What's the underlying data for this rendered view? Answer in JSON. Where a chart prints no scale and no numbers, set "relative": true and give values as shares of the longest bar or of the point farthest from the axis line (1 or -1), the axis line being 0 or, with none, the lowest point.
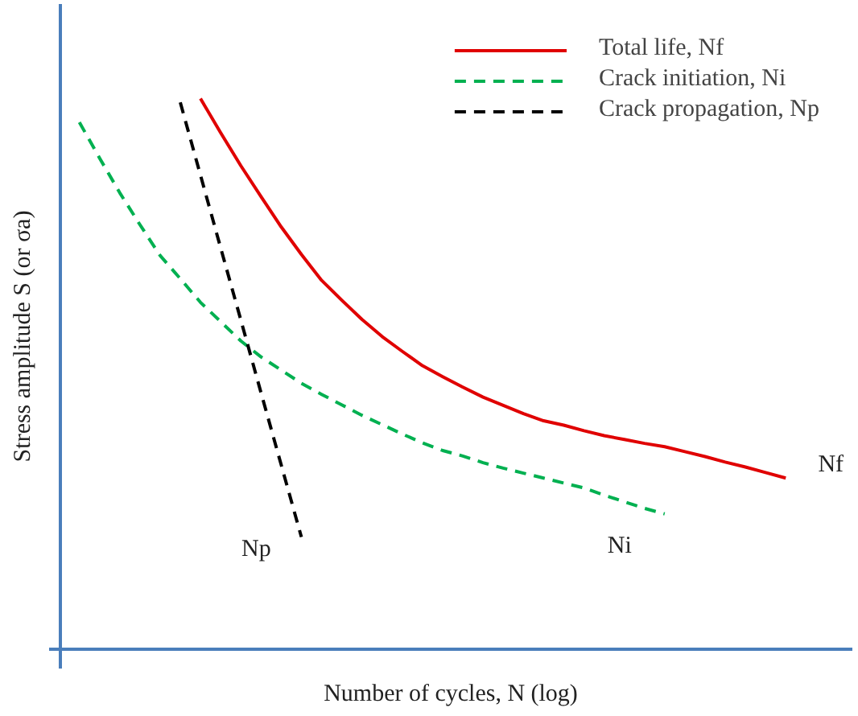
{
  "chart_data": {
    "type": "line",
    "relative": true,
    "xlabel": "Number of cycles, N (log)",
    "ylabel": "Stress amplitude S (or σa)",
    "legend": "top right",
    "grid": false,
    "marker": "none",
    "categories": [
      null,
      null,
      null,
      null,
      null,
      null,
      null,
      null,
      null,
      null,
      null,
      null,
      null,
      null,
      null,
      null,
      null,
      null,
      null,
      null,
      null,
      null,
      null,
      null,
      null,
      null,
      null,
      null,
      null,
      null,
      null,
      null,
      null,
      null,
      null,
      null,
      null,
      null,
      null
    ],
    "series": [
      {
        "name": "Total life, Nf",
        "color": "#e00000",
        "line_style": "solid",
        "values": [
          null,
          null,
          null,
          null,
          null,
          null,
          1,
          0.938,
          0.878,
          0.822,
          0.767,
          0.717,
          0.67,
          0.634,
          0.599,
          0.568,
          0.541,
          0.515,
          0.495,
          0.476,
          0.458,
          0.443,
          0.428,
          0.415,
          0.407,
          0.397,
          0.388,
          0.381,
          0.374,
          0.368,
          0.359,
          0.35,
          0.34,
          0.331,
          0.321,
          0.311,
          null,
          null,
          null
        ]
      },
      {
        "name": "Crack initiation, Ni",
        "color": "#00b050",
        "line_style": "dashed",
        "values": [
          0.957,
          0.892,
          0.829,
          0.771,
          0.715,
          0.673,
          0.63,
          0.595,
          0.56,
          0.531,
          0.507,
          0.483,
          0.463,
          0.444,
          0.425,
          0.408,
          0.391,
          0.375,
          0.361,
          0.351,
          0.339,
          0.329,
          0.32,
          0.311,
          0.302,
          0.293,
          0.28,
          0.268,
          0.256,
          0.246,
          null,
          null,
          null,
          null,
          null,
          null,
          null,
          null,
          null
        ]
      },
      {
        "name": "Crack propagation, Np",
        "color": "#000000",
        "line_style": "dashed",
        "values": [
          null,
          null,
          null,
          null,
          null,
          0.993,
          0.861,
          0.729,
          0.598,
          0.466,
          0.335,
          0.204,
          null,
          null,
          null,
          null,
          null,
          null,
          null,
          null,
          null,
          null,
          null,
          null,
          null,
          null,
          null,
          null,
          null,
          null,
          null,
          null,
          null,
          null,
          null,
          null,
          null,
          null,
          null
        ]
      }
    ],
    "annotations": [
      "Nf",
      "Ni",
      "Np"
    ]
  }
}
